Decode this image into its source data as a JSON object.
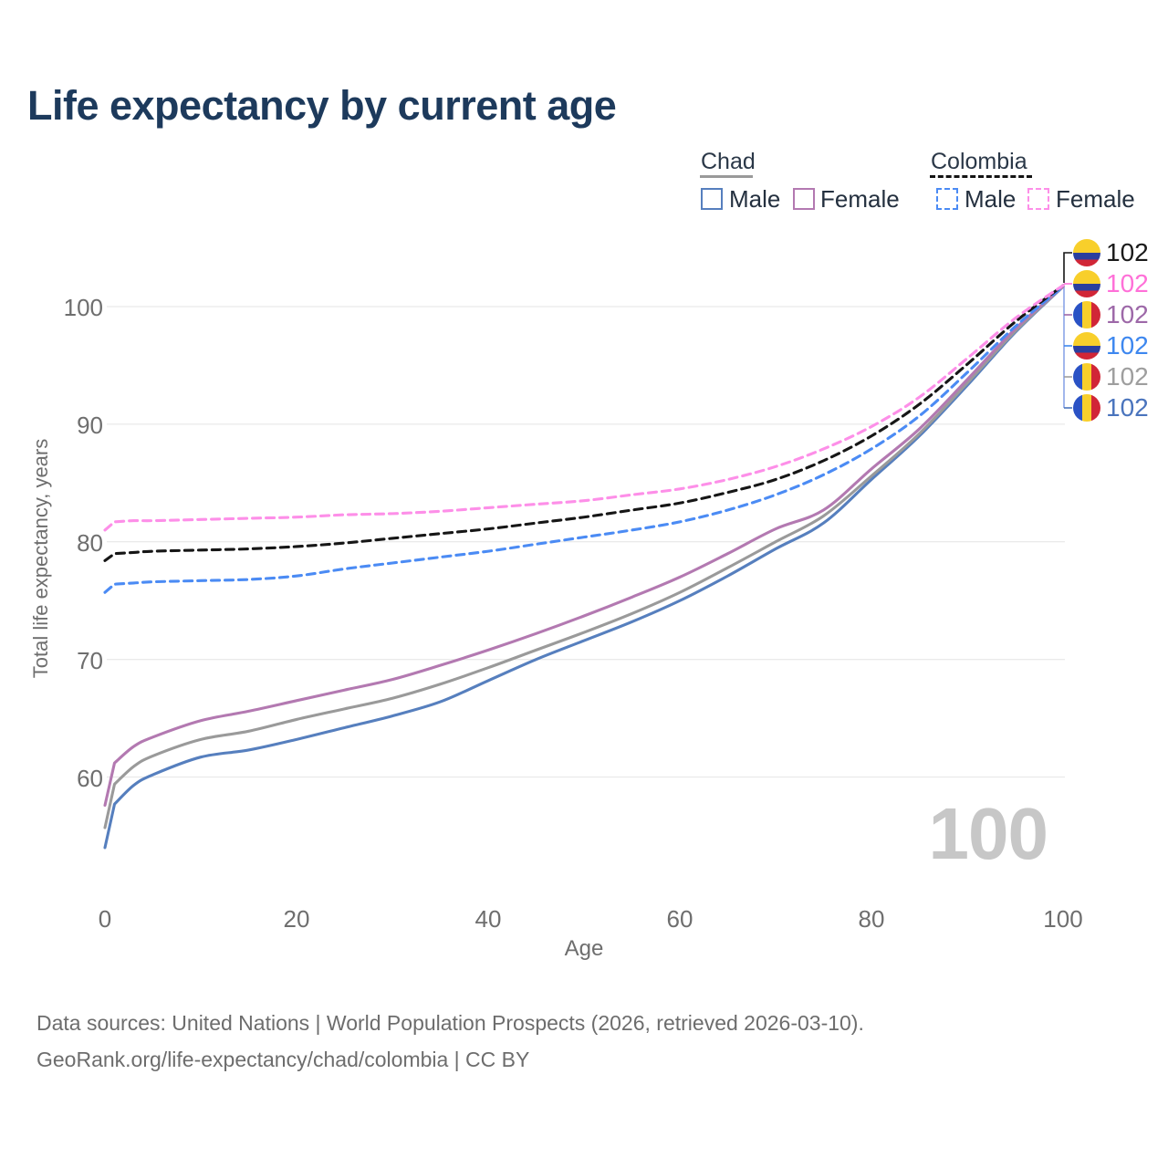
{
  "title": "Life expectancy by current age",
  "legend": {
    "groups": [
      {
        "country": "Chad",
        "line_style": "solid",
        "underline_color": "#9a9a9a",
        "items": [
          {
            "label": "Male",
            "color": "#567fbe"
          },
          {
            "label": "Female",
            "color": "#b379b1"
          }
        ]
      },
      {
        "country": "Colombia",
        "line_style": "dashed",
        "underline_color": "#141414",
        "items": [
          {
            "label": "Male",
            "color": "#4b8bf4"
          },
          {
            "label": "Female",
            "color": "#fd8fe8"
          }
        ]
      }
    ]
  },
  "watermark_value": "100",
  "source_line1": "Data sources: United Nations | World Population Prospects (2026, retrieved 2026-03-10).",
  "source_line2": "GeoRank.org/life-expectancy/chad/colombia | CC BY",
  "end_labels": [
    {
      "flag": "colombia",
      "series": "Colombia",
      "value": "102",
      "color": "#1a1a1a"
    },
    {
      "flag": "colombia",
      "series": "Colombia Female",
      "value": "102",
      "color": "#ff70d8"
    },
    {
      "flag": "chad",
      "series": "Chad Female",
      "value": "102",
      "color": "#9d68a8"
    },
    {
      "flag": "colombia",
      "series": "Colombia Male",
      "value": "102",
      "color": "#3d87ef"
    },
    {
      "flag": "chad",
      "series": "Chad",
      "value": "102",
      "color": "#9e9e9e"
    },
    {
      "flag": "chad",
      "series": "Chad Male",
      "value": "102",
      "color": "#4a74bd"
    }
  ],
  "flag_colors": {
    "chad": {
      "blue": "#2a52c5",
      "yellow": "#f8cf2b",
      "red": "#d12637"
    },
    "colombia": {
      "yellow": "#f8cf2b",
      "blue": "#2a3f9e",
      "red": "#d12637"
    }
  },
  "chart_data": {
    "type": "line",
    "title": "Life expectancy by current age",
    "xlabel": "Age",
    "ylabel": "Total life expectancy, years",
    "x_ticks": [
      0,
      20,
      40,
      60,
      80,
      100
    ],
    "y_ticks": [
      60,
      70,
      80,
      90,
      100
    ],
    "xlim": [
      0,
      100
    ],
    "ylim": [
      53,
      103
    ],
    "grid": "horizontal",
    "legend_position": "top-right",
    "ages": [
      0,
      1,
      3,
      5,
      10,
      15,
      20,
      25,
      30,
      35,
      40,
      45,
      50,
      55,
      60,
      65,
      70,
      75,
      80,
      85,
      90,
      95,
      100
    ],
    "series": [
      {
        "name": "Chad Male",
        "country": "Chad",
        "sex": "male",
        "color": "#567fbe",
        "dash": null,
        "values": [
          54.0,
          57.7,
          59.3,
          60.2,
          61.7,
          62.3,
          63.2,
          64.2,
          65.2,
          66.4,
          68.2,
          70.0,
          71.6,
          73.2,
          75.0,
          77.1,
          79.4,
          81.6,
          85.3,
          89.0,
          93.3,
          97.8,
          101.7
        ]
      },
      {
        "name": "Chad",
        "country": "Chad",
        "sex": "both",
        "color": "#9a9a9a",
        "dash": null,
        "values": [
          55.7,
          59.4,
          60.9,
          61.8,
          63.2,
          63.9,
          64.9,
          65.8,
          66.7,
          67.9,
          69.3,
          70.8,
          72.3,
          73.9,
          75.7,
          77.8,
          80.0,
          82.2,
          85.6,
          89.2,
          93.5,
          97.9,
          101.7
        ]
      },
      {
        "name": "Chad Female",
        "country": "Chad",
        "sex": "female",
        "color": "#b379b1",
        "dash": null,
        "values": [
          57.6,
          61.2,
          62.6,
          63.4,
          64.8,
          65.6,
          66.5,
          67.4,
          68.3,
          69.5,
          70.8,
          72.2,
          73.7,
          75.3,
          77.0,
          79.0,
          81.1,
          82.7,
          86.2,
          89.6,
          93.8,
          98.1,
          101.7
        ]
      },
      {
        "name": "Colombia Male",
        "country": "Colombia",
        "sex": "male",
        "color": "#4b8bf4",
        "dash": "9 6",
        "values": [
          75.7,
          76.4,
          76.5,
          76.6,
          76.7,
          76.8,
          77.1,
          77.7,
          78.2,
          78.7,
          79.2,
          79.8,
          80.4,
          81.0,
          81.7,
          82.7,
          84.0,
          85.7,
          87.9,
          90.7,
          94.4,
          98.3,
          101.7
        ]
      },
      {
        "name": "Colombia",
        "country": "Colombia",
        "sex": "both",
        "color": "#161616",
        "dash": "9 6",
        "values": [
          78.4,
          79.0,
          79.1,
          79.2,
          79.3,
          79.4,
          79.6,
          79.9,
          80.3,
          80.7,
          81.1,
          81.6,
          82.1,
          82.7,
          83.3,
          84.2,
          85.3,
          86.9,
          89.0,
          91.7,
          95.1,
          98.7,
          101.8
        ]
      },
      {
        "name": "Colombia Female",
        "country": "Colombia",
        "sex": "female",
        "color": "#fd8fe8",
        "dash": "9 6",
        "values": [
          81.0,
          81.7,
          81.8,
          81.8,
          81.9,
          82.0,
          82.1,
          82.3,
          82.4,
          82.6,
          82.9,
          83.2,
          83.5,
          84.0,
          84.5,
          85.3,
          86.4,
          87.9,
          89.8,
          92.3,
          95.6,
          99.0,
          101.8
        ]
      }
    ]
  }
}
